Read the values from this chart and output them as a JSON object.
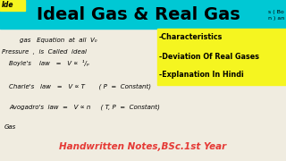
{
  "bg_color": "#f0ece0",
  "title": "Ideal Gas & Real Gas",
  "title_bg": "#00c8d4",
  "title_color": "#000000",
  "top_left_text": "Ide",
  "top_left_bg": "#f5f520",
  "right_panel_bg": "#f5f520",
  "right_panel_items": [
    "-Characteristics",
    "-Deviation Of Real Gases",
    "-Explanation In Hindi"
  ],
  "footer_text": "Handwritten Notes,BSc.1st Year",
  "footer_color": "#e53935",
  "top_right_text": "s ( Bo\nn ) an",
  "fig_width": 3.2,
  "fig_height": 1.8,
  "dpi": 100
}
